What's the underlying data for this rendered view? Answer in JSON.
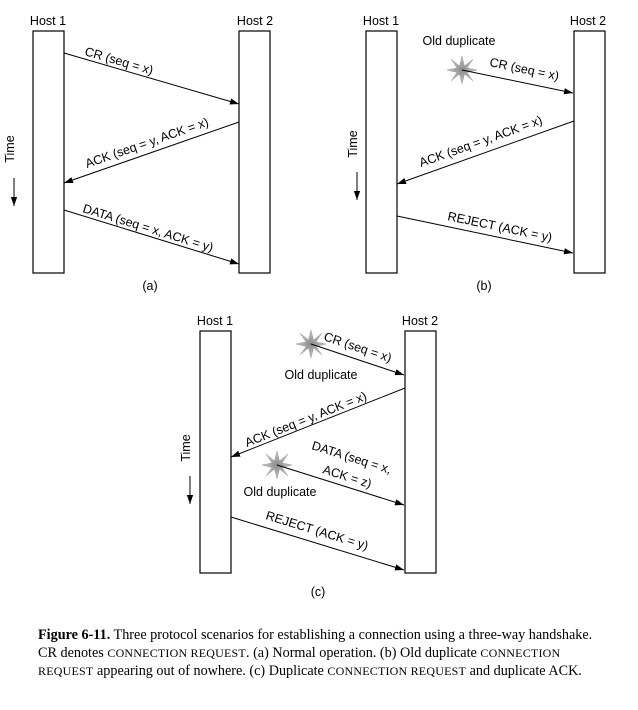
{
  "labels": {
    "host1": "Host 1",
    "host2": "Host 2",
    "time": "Time",
    "old_duplicate": "Old duplicate"
  },
  "panel_a": {
    "tag": "(a)",
    "cr": "CR (seq = x)",
    "ack": "ACK (seq = y, ACK = x)",
    "data": "DATA (seq = x, ACK = y)"
  },
  "panel_b": {
    "tag": "(b)",
    "cr": "CR (seq = x)",
    "ack": "ACK (seq = y, ACK = x)",
    "reject": "REJECT (ACK = y)"
  },
  "panel_c": {
    "tag": "(c)",
    "cr": "CR (seq = x)",
    "ack": "ACK (seq = y, ACK = x)",
    "data_line1": "DATA (seq = x,",
    "data_line2": "ACK = z)",
    "reject": "REJECT (ACK = y)"
  },
  "caption": {
    "figure_label": "Figure 6-11.",
    "t1": " Three protocol scenarios for establishing a connection using a three-way handshake. CR denotes ",
    "sc1": "CONNECTION REQUEST",
    "t2": ".  (a) Normal operation.  (b) Old duplicate ",
    "sc2": "CONNECTION REQUEST",
    "t3": " appearing out of nowhere.  (c) Duplicate ",
    "sc3": "CONNECTION REQUEST",
    "t4": " and duplicate ACK."
  }
}
